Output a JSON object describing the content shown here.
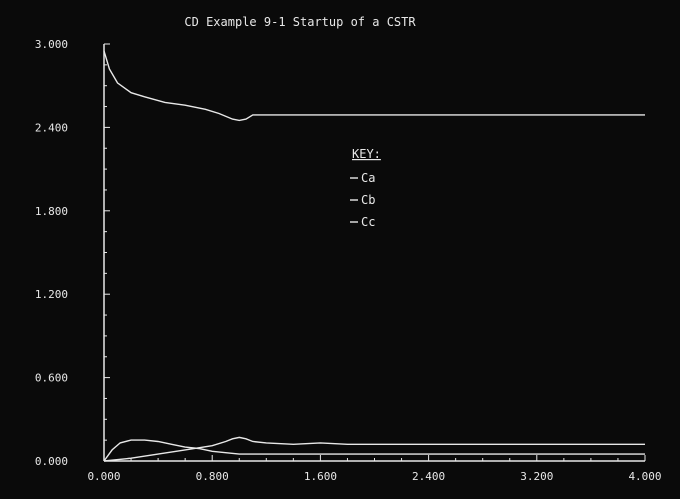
{
  "chart_data": {
    "type": "line",
    "title": "CD Example 9-1 Startup of a CSTR",
    "xlabel": "",
    "ylabel": "",
    "xlim": [
      0,
      4
    ],
    "ylim": [
      0,
      3
    ],
    "x_ticks": [
      "0.000",
      "0.800",
      "1.600",
      "2.400",
      "3.200",
      "4.000"
    ],
    "y_ticks": [
      "0.000",
      "0.600",
      "1.200",
      "1.800",
      "2.400",
      "3.000"
    ],
    "grid": false,
    "legend": {
      "title": "KEY:",
      "placement": "center"
    },
    "series": [
      {
        "name": "Ca",
        "x": [
          0,
          0.04,
          0.1,
          0.2,
          0.3,
          0.45,
          0.6,
          0.75,
          0.85,
          0.95,
          1.0,
          1.05,
          1.1,
          1.4,
          2.0,
          3.0,
          4.0
        ],
        "y": [
          2.95,
          2.82,
          2.72,
          2.65,
          2.62,
          2.58,
          2.56,
          2.53,
          2.5,
          2.46,
          2.45,
          2.46,
          2.49,
          2.49,
          2.49,
          2.49,
          2.49
        ]
      },
      {
        "name": "Cb",
        "x": [
          0,
          0.06,
          0.12,
          0.2,
          0.3,
          0.4,
          0.5,
          0.6,
          0.7,
          0.8,
          0.9,
          1.0,
          1.1,
          1.2,
          1.5,
          2.0,
          4.0
        ],
        "y": [
          0.0,
          0.08,
          0.13,
          0.15,
          0.15,
          0.14,
          0.12,
          0.1,
          0.09,
          0.07,
          0.06,
          0.05,
          0.05,
          0.05,
          0.05,
          0.05,
          0.05
        ]
      },
      {
        "name": "Cc",
        "x": [
          0,
          0.2,
          0.4,
          0.6,
          0.8,
          0.9,
          0.95,
          1.0,
          1.05,
          1.1,
          1.2,
          1.4,
          1.6,
          1.8,
          2.0,
          3.0,
          4.0
        ],
        "y": [
          0.0,
          0.02,
          0.05,
          0.08,
          0.11,
          0.14,
          0.16,
          0.17,
          0.16,
          0.14,
          0.13,
          0.12,
          0.13,
          0.12,
          0.12,
          0.12,
          0.12
        ]
      }
    ]
  }
}
